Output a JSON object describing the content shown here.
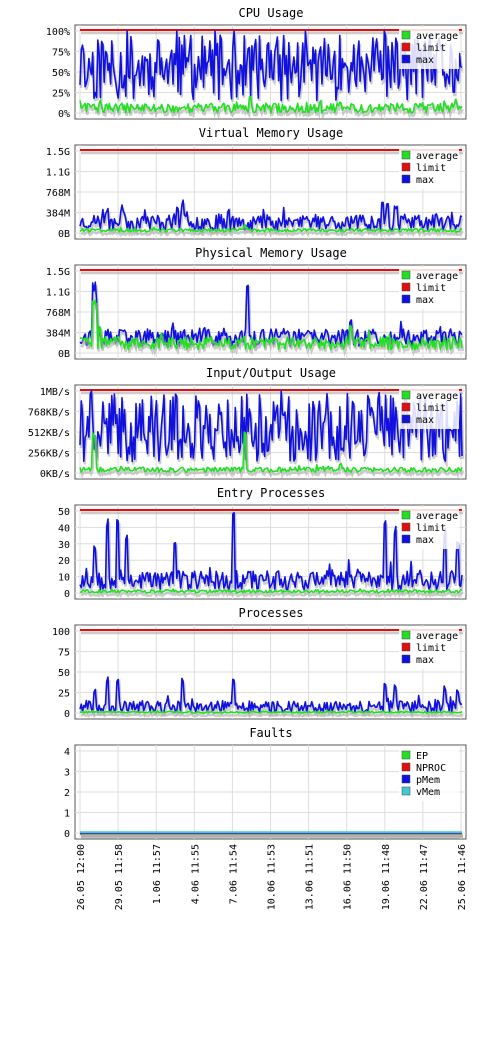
{
  "x_labels": [
    "26.05 12:00",
    "29.05 11:58",
    "1.06 11:57",
    "4.06 11:55",
    "7.06 11:54",
    "10.06 11:53",
    "13.06 11:51",
    "16.06 11:50",
    "19.06 11:48",
    "22.06 11:47",
    "25.06 11:46"
  ],
  "colors": {
    "average": "#22e022",
    "limit": "#e01010",
    "max": "#1010e0",
    "EP": "#22e022",
    "NPROC": "#e01010",
    "pMem": "#1010e0",
    "vMem": "#40c8d8"
  },
  "chart_data": [
    {
      "type": "line",
      "title": "CPU Usage",
      "yticks": [
        "100%",
        "75%",
        "50%",
        "25%",
        "0%"
      ],
      "ylim": [
        0,
        100
      ],
      "legend": "top-right",
      "series": [
        {
          "name": "average",
          "baseline": 6,
          "noise": 6,
          "spikes": [
            [
              250,
              20
            ],
            [
              340,
              14
            ],
            [
              430,
              10
            ],
            [
              100,
              12
            ]
          ]
        },
        {
          "name": "limit",
          "constant": 100
        },
        {
          "name": "max",
          "baseline": 55,
          "noise": 40
        }
      ],
      "seed": 11
    },
    {
      "type": "line",
      "title": "Virtual Memory Usage",
      "yticks": [
        "1.5G",
        "1.1G",
        "768M",
        "384M",
        "0B"
      ],
      "ylim": [
        0,
        1.5
      ],
      "legend": "top-right",
      "series": [
        {
          "name": "average",
          "baseline": 0.05,
          "noise": 0.03,
          "spikes": [
            [
              245,
              0.15
            ]
          ]
        },
        {
          "name": "limit",
          "constant": 1.5
        },
        {
          "name": "max",
          "baseline": 0.2,
          "noise": 0.15,
          "spikes": [
            [
              183,
              0.6
            ],
            [
              178,
              0.5
            ],
            [
              383,
              0.65
            ],
            [
              388,
              0.55
            ],
            [
              397,
              0.5
            ],
            [
              107,
              0.45
            ],
            [
              122,
              0.4
            ],
            [
              228,
              0.45
            ]
          ]
        }
      ],
      "seed": 23
    },
    {
      "type": "line",
      "title": "Physical Memory Usage",
      "yticks": [
        "1.5G",
        "1.1G",
        "768M",
        "384M",
        "0B"
      ],
      "ylim": [
        0,
        1.5
      ],
      "legend": "top-right",
      "series": [
        {
          "name": "average",
          "baseline": 0.18,
          "noise": 0.12,
          "spikes": [
            [
              94,
              1.0
            ],
            [
              96,
              0.8
            ],
            [
              100,
              0.5
            ],
            [
              350,
              0.5
            ]
          ]
        },
        {
          "name": "limit",
          "constant": 1.5
        },
        {
          "name": "max",
          "baseline": 0.28,
          "noise": 0.16,
          "spikes": [
            [
              94,
              1.3
            ],
            [
              96,
              1.0
            ],
            [
              247,
              1.4
            ],
            [
              350,
              0.65
            ]
          ]
        }
      ],
      "seed": 37
    },
    {
      "type": "line",
      "title": "Input/Output Usage",
      "yticks": [
        "1MB/s",
        "768KB/s",
        "512KB/s",
        "256KB/s",
        "0KB/s"
      ],
      "ylim": [
        0,
        1
      ],
      "legend": "top-right",
      "series": [
        {
          "name": "average",
          "baseline": 0.04,
          "noise": 0.03,
          "spikes": [
            [
              94,
              0.5
            ],
            [
              245,
              0.55
            ],
            [
              340,
              0.12
            ]
          ]
        },
        {
          "name": "limit",
          "constant": 1
        },
        {
          "name": "max",
          "baseline": 0.55,
          "noise": 0.42
        }
      ],
      "seed": 41
    },
    {
      "type": "line",
      "title": "Entry Processes",
      "yticks": [
        "50",
        "40",
        "30",
        "20",
        "10",
        "0"
      ],
      "ylim": [
        0,
        50
      ],
      "legend": "top-right",
      "series": [
        {
          "name": "average",
          "baseline": 1,
          "noise": 1
        },
        {
          "name": "limit",
          "constant": 50
        },
        {
          "name": "max",
          "baseline": 8,
          "noise": 6,
          "spikes": [
            [
              107,
              47
            ],
            [
              117,
              46
            ],
            [
              234,
              49
            ],
            [
              127,
              38
            ],
            [
              95,
              30
            ],
            [
              175,
              35
            ],
            [
              385,
              45
            ],
            [
              395,
              42
            ],
            [
              445,
              40
            ],
            [
              457,
              35
            ]
          ]
        }
      ],
      "seed": 53
    },
    {
      "type": "line",
      "title": "Processes",
      "yticks": [
        "100",
        "75",
        "50",
        "25",
        "0"
      ],
      "ylim": [
        0,
        100
      ],
      "legend": "top-right",
      "series": [
        {
          "name": "average",
          "baseline": 1,
          "noise": 1
        },
        {
          "name": "limit",
          "constant": 100
        },
        {
          "name": "max",
          "baseline": 8,
          "noise": 7,
          "spikes": [
            [
              107,
              45
            ],
            [
              117,
              45
            ],
            [
              234,
              47
            ],
            [
              95,
              30
            ],
            [
              183,
              45
            ],
            [
              385,
              40
            ],
            [
              395,
              37
            ],
            [
              445,
              33
            ],
            [
              457,
              30
            ]
          ]
        }
      ],
      "seed": 67
    },
    {
      "type": "line",
      "title": "Faults",
      "yticks": [
        "4",
        "3",
        "2",
        "1",
        "0"
      ],
      "ylim": [
        0,
        4
      ],
      "legend": "top-right",
      "series": [
        {
          "name": "EP",
          "constant": 0
        },
        {
          "name": "NPROC",
          "constant": 0
        },
        {
          "name": "pMem",
          "constant": 0
        },
        {
          "name": "vMem",
          "constant": 0
        }
      ],
      "seed": 0
    }
  ]
}
